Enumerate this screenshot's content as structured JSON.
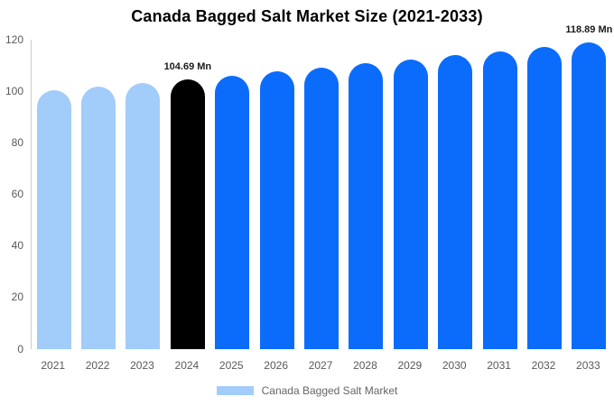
{
  "title": "Canada Bagged Salt Market Size (2021-2033)",
  "legend": {
    "label": "Canada Bagged Salt Market",
    "swatch_color": "#A2CCFA"
  },
  "colors": {
    "title_text": "#000000",
    "axis_line": "#CCCCCC",
    "tick_text": "#595959",
    "annotation_text": "#1A1A1A",
    "legend_text": "#666666",
    "historical_bar": "#A2CCFA",
    "base_year_bar": "#000000",
    "forecast_bar": "#0B6CFB"
  },
  "chart_data": {
    "type": "bar",
    "title": "Canada Bagged Salt Market Size (2021-2033)",
    "xlabel": "",
    "ylabel": "",
    "ylim": [
      0,
      120
    ],
    "yticks": [
      0,
      20,
      40,
      60,
      80,
      100,
      120
    ],
    "grid": false,
    "legend_position": "bottom",
    "legend_entries": [
      "Canada Bagged Salt Market"
    ],
    "categories": [
      "2021",
      "2022",
      "2023",
      "2024",
      "2025",
      "2026",
      "2027",
      "2028",
      "2029",
      "2030",
      "2031",
      "2032",
      "2033"
    ],
    "values": [
      100.36,
      101.78,
      103.22,
      104.69,
      106.18,
      107.68,
      109.21,
      110.76,
      112.33,
      113.92,
      115.54,
      117.18,
      118.89
    ],
    "bar_colors": [
      "#A2CCFA",
      "#A2CCFA",
      "#A2CCFA",
      "#000000",
      "#0B6CFB",
      "#0B6CFB",
      "#0B6CFB",
      "#0B6CFB",
      "#0B6CFB",
      "#0B6CFB",
      "#0B6CFB",
      "#0B6CFB",
      "#0B6CFB"
    ],
    "point_labels": [
      "",
      "",
      "",
      "104.69 Mn",
      "",
      "",
      "",
      "",
      "",
      "",
      "",
      "",
      "118.89 Mn"
    ],
    "unit": "Mn"
  }
}
